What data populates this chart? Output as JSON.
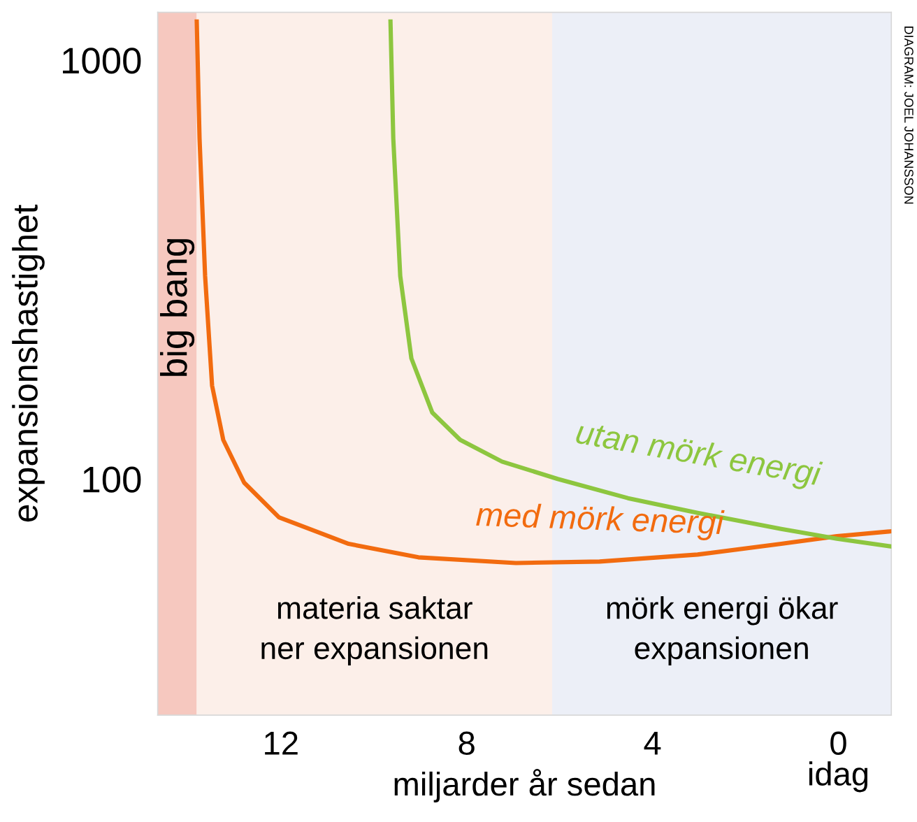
{
  "chart_data": {
    "type": "line",
    "xlabel": "miljarder år sedan",
    "ylabel": "expansionshastighet",
    "log": "y",
    "xlim": [
      14.65,
      -1.14
    ],
    "ylim": [
      27.3,
      1300
    ],
    "xticks": [
      12,
      8,
      4,
      {
        "value": 0,
        "label": "0\nidag"
      }
    ],
    "yticks": [
      100,
      1000
    ],
    "grid": false,
    "legend": false,
    "series": [
      {
        "name": "med mörk energi",
        "color": "#f26b0f",
        "x": [
          13.81,
          13.75,
          13.63,
          13.48,
          13.24,
          12.79,
          12.04,
          10.54,
          9.04,
          6.94,
          5.14,
          3.03,
          1.23,
          0.03,
          -1.14
        ],
        "values": [
          1236,
          650,
          305,
          167,
          124,
          98,
          81,
          70,
          65,
          63,
          63.5,
          66,
          70,
          73,
          75
        ]
      },
      {
        "name": "utan mörk energi",
        "color": "#8dc63f",
        "x": [
          9.64,
          9.58,
          9.43,
          9.19,
          8.74,
          8.14,
          7.24,
          6.04,
          4.53,
          3.03,
          1.23,
          0.03,
          -1.14
        ],
        "values": [
          1236,
          650,
          305,
          194,
          144,
          124,
          110,
          100,
          90,
          83,
          76,
          72,
          69
        ]
      }
    ],
    "bands": [
      {
        "axis": "x",
        "from": 14.65,
        "to": 13.81,
        "label": "big bang",
        "color": "#f6c8bf"
      },
      {
        "axis": "x",
        "from": 13.81,
        "to": 6.16,
        "label": "materia saktar\nner expansionen",
        "color": "#fcefe9"
      },
      {
        "axis": "x",
        "from": 6.16,
        "to": -1.14,
        "label": "mörk energi ökar\nexpansionen",
        "color": "#eceff7"
      }
    ],
    "annotations": [
      "DIAGRAM: JOEL JOHANSSON"
    ]
  }
}
